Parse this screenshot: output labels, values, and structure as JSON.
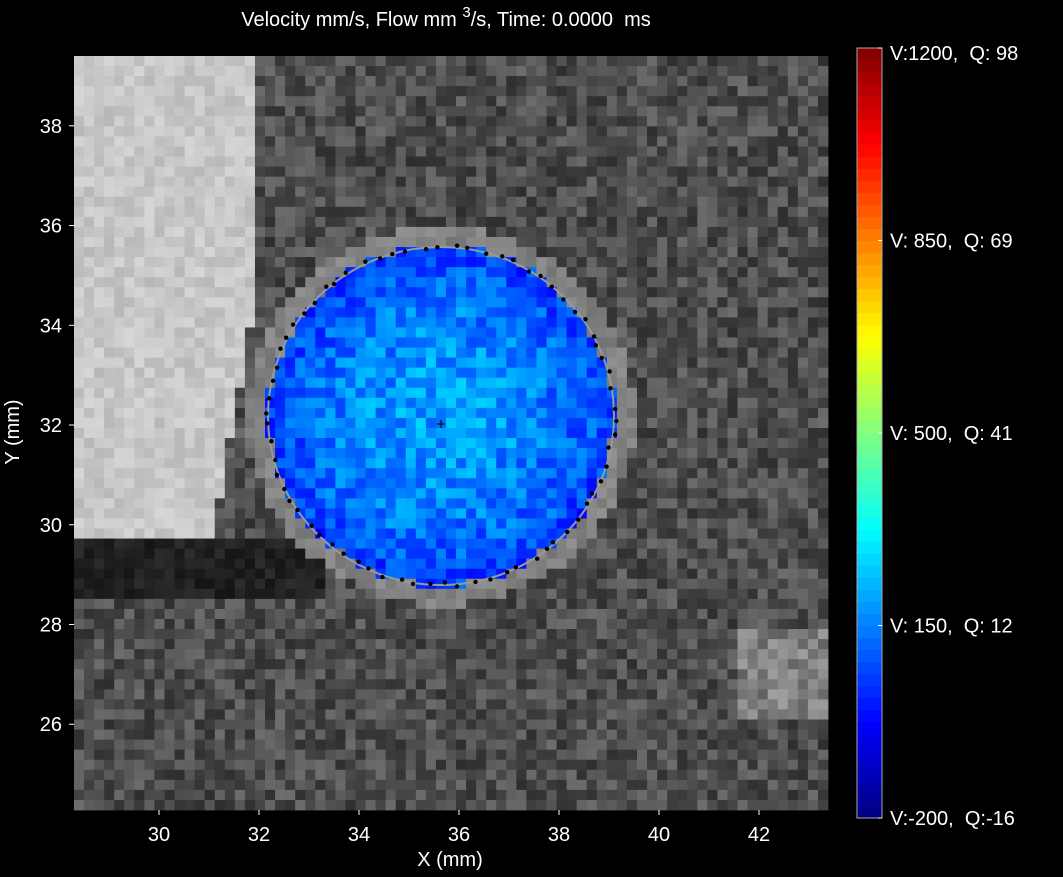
{
  "chart_data": {
    "type": "image",
    "title": [
      "Velocity mm/s, Flow mm ",
      "3",
      "/s, Time: 0.0000  ms"
    ],
    "x_label": "X (mm)",
    "y_label": "Y (mm)",
    "xlim": [
      28.3,
      43.38
    ],
    "ylim": [
      24.28,
      39.4
    ],
    "xticks": [
      30,
      32,
      34,
      36,
      38,
      40,
      42
    ],
    "yticks": [
      26,
      28,
      30,
      32,
      34,
      36,
      38
    ],
    "colorbar": {
      "colormap": "jet",
      "lim": [
        -200,
        1200
      ],
      "ticks": [
        {
          "value": 1200,
          "label": "V:1200,  Q: 98"
        },
        {
          "value": 850,
          "label": "V: 850,  Q: 69"
        },
        {
          "value": 500,
          "label": "V: 500,  Q: 41"
        },
        {
          "value": 150,
          "label": "V: 150,  Q: 12"
        },
        {
          "value": -200,
          "label": "V:-200,  Q:-16"
        }
      ]
    }
  }
}
